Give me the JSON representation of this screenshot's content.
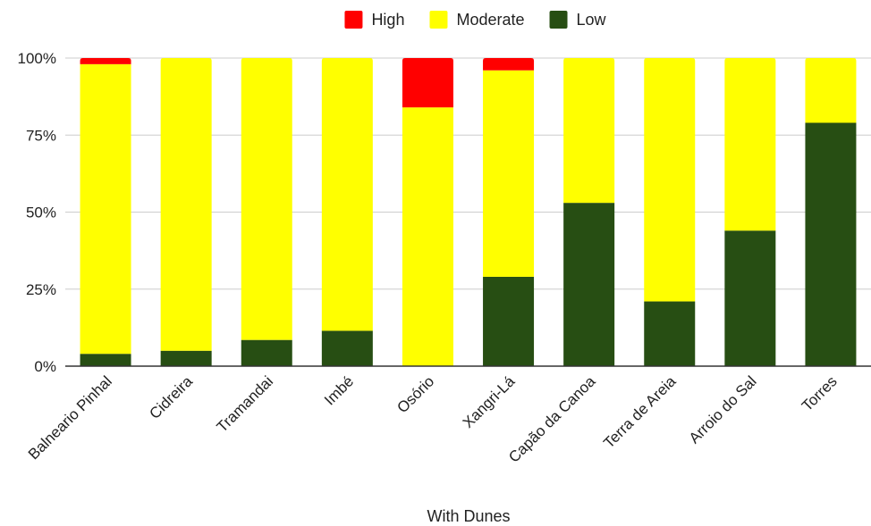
{
  "chart_data": {
    "type": "bar",
    "stacked": true,
    "percent": true,
    "categories": [
      "Balneario Pinhal",
      "Cidreira",
      "Tramandai",
      "Imbé",
      "Osório",
      "Xangri-Lá",
      "Capão da Canoa",
      "Terra de Areia",
      "Arroio do Sal",
      "Torres"
    ],
    "series": [
      {
        "name": "Low",
        "color": "#274e13",
        "values": [
          4,
          5,
          8.5,
          11.5,
          0,
          29,
          53,
          21,
          44,
          79
        ]
      },
      {
        "name": "Moderate",
        "color": "#ffff00",
        "values": [
          94,
          95,
          91.5,
          88.5,
          84,
          67,
          47,
          79,
          56,
          21
        ]
      },
      {
        "name": "High",
        "color": "#ff0000",
        "values": [
          2,
          0,
          0,
          0,
          16,
          4,
          0,
          0,
          0,
          0
        ]
      }
    ],
    "legend_order": [
      "High",
      "Moderate",
      "Low"
    ],
    "legend_position": "top",
    "yticks": [
      "0%",
      "25%",
      "50%",
      "75%",
      "100%"
    ],
    "ylim": [
      0,
      100
    ],
    "xlabel": "With Dunes",
    "ylabel": "",
    "grid": true
  }
}
